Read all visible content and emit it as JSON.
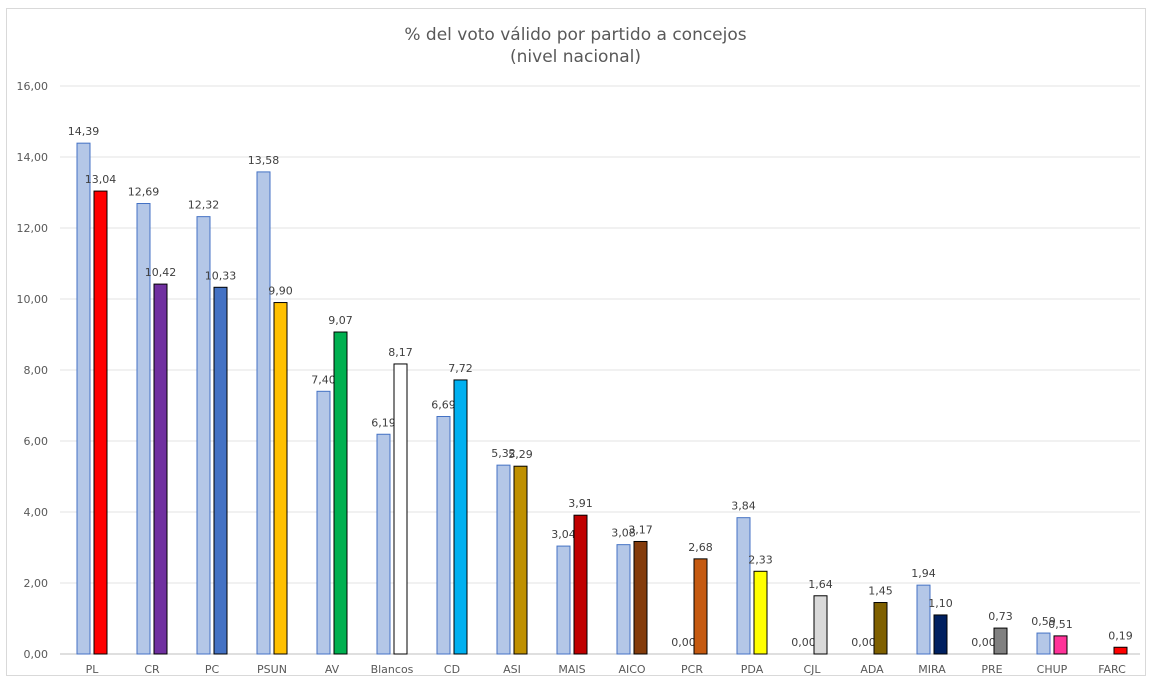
{
  "chart_data": {
    "type": "bar",
    "title": "% del voto válido por partido a concejos",
    "subtitle": "(nivel nacional)",
    "xlabel": "",
    "ylabel": "",
    "ylim": [
      0,
      16
    ],
    "yticks": [
      "0,00",
      "2,00",
      "4,00",
      "6,00",
      "8,00",
      "10,00",
      "12,00",
      "14,00",
      "16,00"
    ],
    "grid": true,
    "categories": [
      "PL",
      "CR",
      "PC",
      "PSUN",
      "AV",
      "Blancos",
      "CD",
      "ASI",
      "MAIS",
      "AICO",
      "PCR",
      "PDA",
      "CJL",
      "ADA",
      "MIRA",
      "PRE",
      "CHUP",
      "FARC"
    ],
    "series": [
      {
        "values": [
          14.39,
          12.69,
          12.32,
          13.58,
          7.4,
          6.19,
          6.69,
          5.32,
          3.04,
          3.08,
          0.0,
          3.84,
          0.0,
          0.0,
          1.94,
          0.0,
          0.59,
          null
        ],
        "labels": [
          "14,39",
          "12,69",
          "12,32",
          "13,58",
          "7,40",
          "6,19",
          "6,69",
          "5,32",
          "3,04",
          "3,08",
          "0,00",
          "3,84",
          "0,00",
          "0,00",
          "1,94",
          "0,00",
          "0,59",
          ""
        ],
        "color": "#b4c7e7",
        "stroke": "#4472c4"
      },
      {
        "values": [
          13.04,
          10.42,
          10.33,
          9.9,
          9.07,
          8.17,
          7.72,
          5.29,
          3.91,
          3.17,
          2.68,
          2.33,
          1.64,
          1.45,
          1.1,
          0.73,
          0.51,
          0.19
        ],
        "labels": [
          "13,04",
          "10,42",
          "10,33",
          "9,90",
          "9,07",
          "8,17",
          "7,72",
          "5,29",
          "3,91",
          "3,17",
          "2,68",
          "2,33",
          "1,64",
          "1,45",
          "1,10",
          "0,73",
          "0,51",
          "0,19"
        ],
        "colors": [
          "#ff0000",
          "#7030a0",
          "#4472c4",
          "#ffc000",
          "#00b050",
          "#ffffff",
          "#00b0f0",
          "#bf9000",
          "#c00000",
          "#843c0c",
          "#c55a11",
          "#ffff00",
          "#d9d9d9",
          "#7f6000",
          "#002060",
          "#808080",
          "#ff3399",
          "#ff0000"
        ],
        "stroke": "#000000"
      }
    ]
  }
}
